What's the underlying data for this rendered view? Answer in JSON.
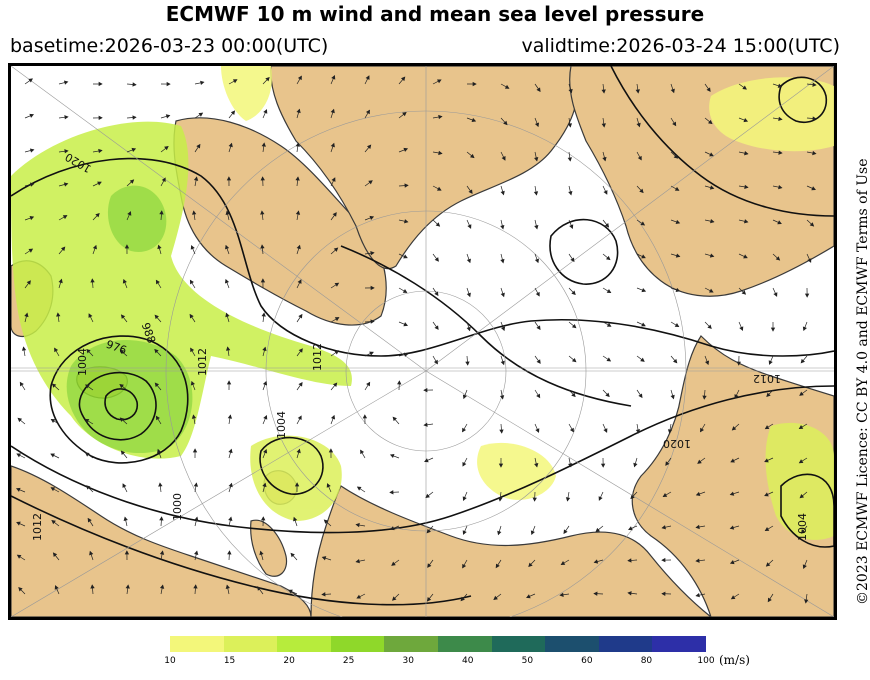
{
  "header": {
    "title": "ECMWF 10 m wind and mean sea level pressure",
    "basetime": "basetime:2026-03-23 00:00(UTC)",
    "validtime": "validtime:2026-03-24 15:00(UTC)"
  },
  "licence": "©2023 ECMWF Licence: CC BY 4.0 and ECMWF Terms of Use",
  "isobar_labels": [
    "1020",
    "988",
    "976",
    "1004",
    "1012",
    "1020",
    "1012",
    "1012",
    "1004",
    "1012",
    "1000",
    "1004"
  ],
  "legend": {
    "unit": "(m/s)",
    "ticks": [
      "10",
      "15",
      "20",
      "25",
      "30",
      "40",
      "50",
      "60",
      "80",
      "100"
    ],
    "colors": [
      "#f3f77a",
      "#dcf05a",
      "#b7ec3c",
      "#8fd82a",
      "#6ea83c",
      "#3d8a4a",
      "#1f6a5a",
      "#1c4f6e",
      "#1f3a8a",
      "#2d2fa8"
    ]
  },
  "colors": {
    "land": "#e8c48c",
    "sea": "#ffffff",
    "coast": "#3a3a3a",
    "isobar": "#111111",
    "wind_light": "#f3f77a",
    "wind_mid": "#c8ef48",
    "wind_strong": "#8fd82a"
  }
}
